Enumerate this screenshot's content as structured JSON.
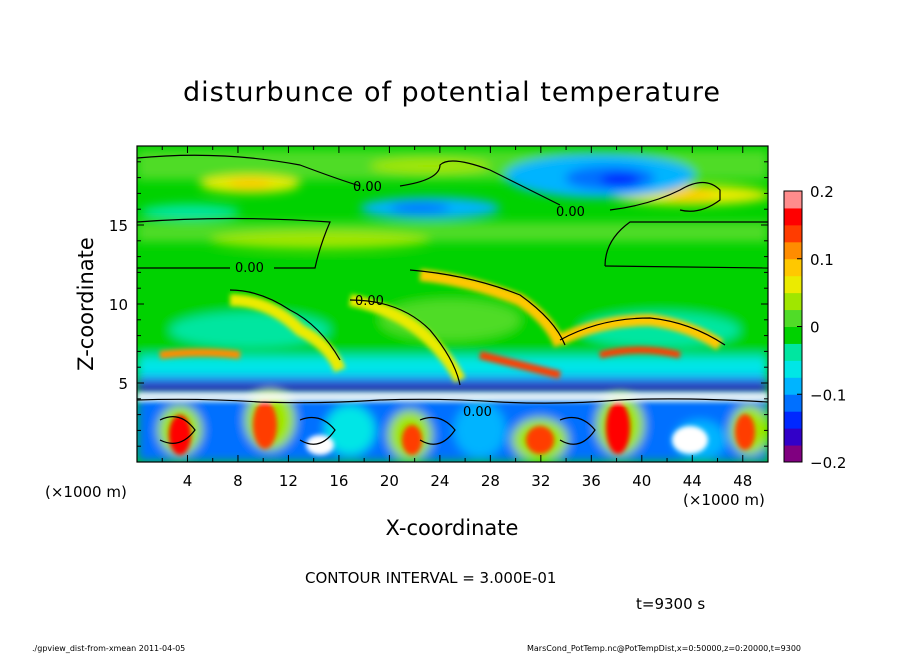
{
  "chart_data": {
    "type": "heatmap",
    "title": "disturbunce of potential temperature",
    "xlabel": "X-coordinate",
    "ylabel": "Z-coordinate",
    "x_unit_left": "(×1000 m)",
    "x_unit_right": "(×1000 m)",
    "xlim": [
      0,
      50
    ],
    "ylim": [
      0,
      20
    ],
    "x_ticks": [
      4,
      8,
      12,
      16,
      20,
      24,
      28,
      32,
      36,
      40,
      44,
      48
    ],
    "y_ticks": [
      5,
      10,
      15
    ],
    "colorbar": {
      "vmin": -0.2,
      "vmax": 0.2,
      "ticks": [
        0.2,
        0.1,
        0,
        -0.1,
        -0.2
      ],
      "tick_labels": [
        "0.2",
        "0.1",
        "0",
        "−0.1",
        "−0.2"
      ],
      "colors": [
        "#800080",
        "#3200c8",
        "#0028ff",
        "#0070ff",
        "#00b4ff",
        "#00e6e6",
        "#00e6a0",
        "#00d200",
        "#50dc28",
        "#a0e600",
        "#ebeb00",
        "#ffc800",
        "#ff8c00",
        "#ff3c00",
        "#ff0000",
        "#ff8c8c"
      ]
    },
    "contour_labels": [
      "0.00",
      "0.00",
      "0.00",
      "0.00",
      "0.00"
    ],
    "field_description": {
      "upper_layer_min_regions": [
        [
          30,
          17.5
        ],
        [
          36,
          18
        ],
        [
          22,
          16
        ]
      ],
      "upper_layer_max_regions": [
        [
          9,
          17.2
        ],
        [
          24,
          18.3
        ],
        [
          44,
          16.8
        ]
      ],
      "mixed_layer_top_km": 5
    }
  },
  "footer": {
    "contour_interval": "CONTOUR INTERVAL = 3.000E-01",
    "time": "t=9300 s",
    "left_note": "./gpview_dist-from-xmean   2011-04-05",
    "right_note": "MarsCond_PotTemp.nc@PotTempDist,x=0:50000,z=0:20000,t=9300"
  }
}
